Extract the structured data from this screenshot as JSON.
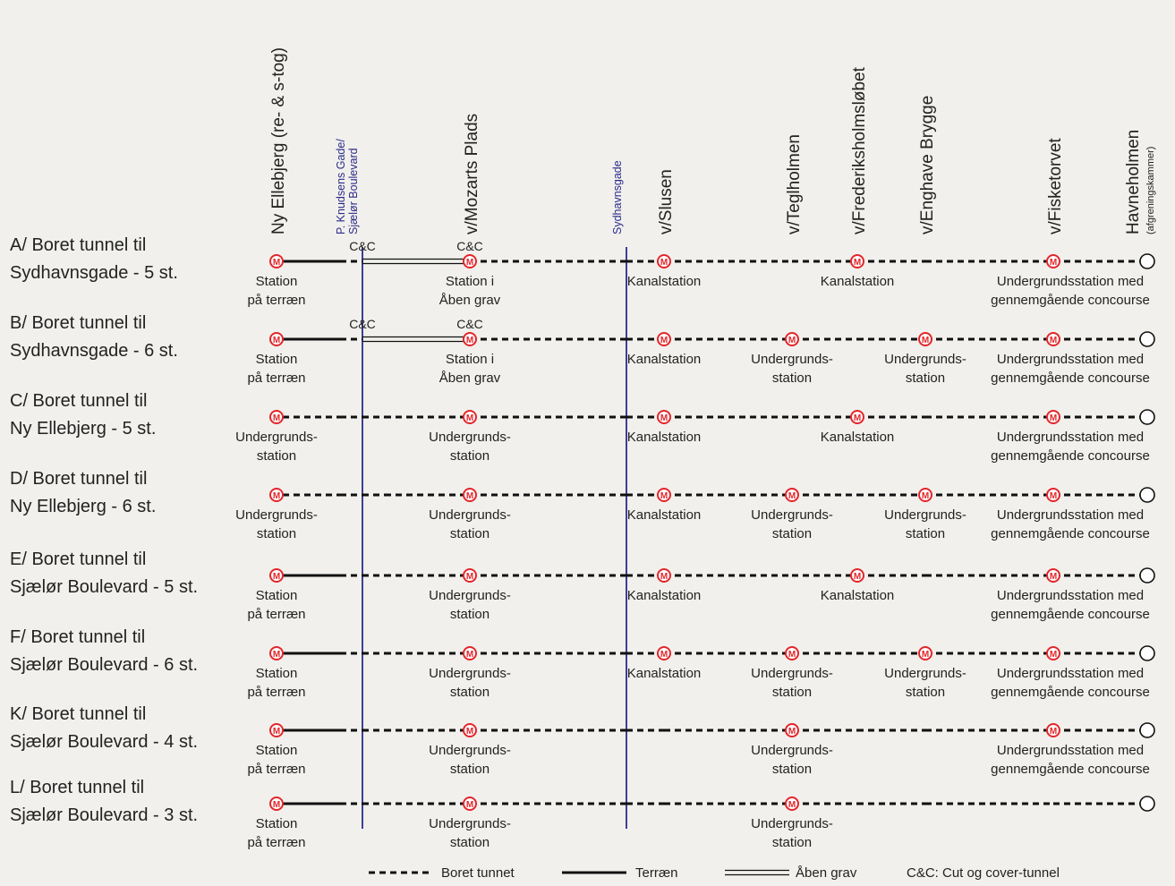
{
  "colors": {
    "background": "#f1f0ec",
    "line": "#111111",
    "divider": "#2b2b8c",
    "metro_ring": "#e3262b",
    "text": "#222222"
  },
  "columns": [
    {
      "id": "ny-ellebjerg",
      "label": "Ny Ellebjerg (re- & s-tog)"
    },
    {
      "id": "mozarts",
      "label": "v/Mozarts Plads"
    },
    {
      "id": "slusen",
      "label": "v/Slusen"
    },
    {
      "id": "teglholmen",
      "label": "v/Teglholmen"
    },
    {
      "id": "frederiksholm",
      "label": "v/Frederiksholmsløbet"
    },
    {
      "id": "enghave",
      "label": "v/Enghave Brygge"
    },
    {
      "id": "fisketorvet",
      "label": "v/Fisketorvet"
    },
    {
      "id": "havneholmen",
      "label": "Havneholmen",
      "sublabel": "(afgreningskammer)"
    }
  ],
  "dividers": [
    {
      "id": "pknudsen",
      "label_lines": [
        "P. Knudsens Gade/",
        "Sjælør Boulevard"
      ]
    },
    {
      "id": "sydhavnsgade",
      "label_lines": [
        "Sydhavnsgade"
      ]
    }
  ],
  "metro_symbol": "M",
  "rows": [
    {
      "title_lines": [
        "A/ Boret tunnel til",
        "Sydhavnsgade - 5 st."
      ],
      "segments": [
        "terrain",
        "cc",
        "open",
        "open",
        "bored",
        "bored",
        "bored",
        "bored",
        "bored",
        "bored",
        "bored"
      ],
      "cc_labels": [
        {
          "text": "C&C",
          "at": "pknudsen"
        },
        {
          "text": "C&C",
          "at": "mozarts"
        }
      ],
      "stations": [
        {
          "at": "ny-ellebjerg",
          "lines": [
            "Station",
            "på terræn"
          ]
        },
        {
          "at": "mozarts",
          "lines": [
            "Station i",
            "Åben grav"
          ]
        },
        {
          "at": "slusen",
          "lines": [
            "Kanalstation"
          ]
        },
        {
          "at": "frederiksholm",
          "lines": [
            "Kanalstation"
          ]
        },
        {
          "at": "fisketorvet",
          "lines": [
            "Undergrundsstation med",
            "gennemgående concourse"
          ]
        }
      ]
    },
    {
      "title_lines": [
        "B/ Boret tunnel til",
        "Sydhavnsgade - 6 st."
      ],
      "segments": [
        "terrain",
        "cc",
        "open",
        "open",
        "bored",
        "bored",
        "bored",
        "bored",
        "bored",
        "bored",
        "bored"
      ],
      "cc_labels": [
        {
          "text": "C&C",
          "at": "pknudsen"
        },
        {
          "text": "C&C",
          "at": "mozarts"
        }
      ],
      "stations": [
        {
          "at": "ny-ellebjerg",
          "lines": [
            "Station",
            "på terræn"
          ]
        },
        {
          "at": "mozarts",
          "lines": [
            "Station i",
            "Åben grav"
          ]
        },
        {
          "at": "slusen",
          "lines": [
            "Kanalstation"
          ]
        },
        {
          "at": "teglholmen",
          "lines": [
            "Undergrunds-",
            "station"
          ]
        },
        {
          "at": "enghave",
          "lines": [
            "Undergrunds-",
            "station"
          ]
        },
        {
          "at": "fisketorvet",
          "lines": [
            "Undergrundsstation med",
            "gennemgående concourse"
          ]
        }
      ]
    },
    {
      "title_lines": [
        "C/ Boret tunnel til",
        "Ny Ellebjerg - 5 st."
      ],
      "segments": [
        "bored",
        "bored",
        "bored",
        "bored",
        "bored",
        "bored",
        "bored",
        "bored",
        "bored",
        "bored",
        "bored"
      ],
      "cc_labels": [],
      "stations": [
        {
          "at": "ny-ellebjerg",
          "lines": [
            "Undergrunds-",
            "station"
          ]
        },
        {
          "at": "mozarts",
          "lines": [
            "Undergrunds-",
            "station"
          ]
        },
        {
          "at": "slusen",
          "lines": [
            "Kanalstation"
          ]
        },
        {
          "at": "frederiksholm",
          "lines": [
            "Kanalstation"
          ]
        },
        {
          "at": "fisketorvet",
          "lines": [
            "Undergrundsstation med",
            "gennemgående concourse"
          ]
        }
      ]
    },
    {
      "title_lines": [
        "D/ Boret tunnel til",
        "Ny Ellebjerg - 6 st."
      ],
      "segments": [
        "bored",
        "bored",
        "bored",
        "bored",
        "bored",
        "bored",
        "bored",
        "bored",
        "bored",
        "bored",
        "bored"
      ],
      "cc_labels": [],
      "stations": [
        {
          "at": "ny-ellebjerg",
          "lines": [
            "Undergrunds-",
            "station"
          ]
        },
        {
          "at": "mozarts",
          "lines": [
            "Undergrunds-",
            "station"
          ]
        },
        {
          "at": "slusen",
          "lines": [
            "Kanalstation"
          ]
        },
        {
          "at": "teglholmen",
          "lines": [
            "Undergrunds-",
            "station"
          ]
        },
        {
          "at": "enghave",
          "lines": [
            "Undergrunds-",
            "station"
          ]
        },
        {
          "at": "fisketorvet",
          "lines": [
            "Undergrundsstation med",
            "gennemgående concourse"
          ]
        }
      ]
    },
    {
      "title_lines": [
        "E/ Boret tunnel til",
        "Sjælør Boulevard - 5 st."
      ],
      "segments": [
        "terrain",
        "bored",
        "bored",
        "bored",
        "bored",
        "bored",
        "bored",
        "bored",
        "bored",
        "bored",
        "bored"
      ],
      "cc_labels": [],
      "stations": [
        {
          "at": "ny-ellebjerg",
          "lines": [
            "Station",
            "på terræn"
          ]
        },
        {
          "at": "mozarts",
          "lines": [
            "Undergrunds-",
            "station"
          ]
        },
        {
          "at": "slusen",
          "lines": [
            "Kanalstation"
          ]
        },
        {
          "at": "frederiksholm",
          "lines": [
            "Kanalstation"
          ]
        },
        {
          "at": "fisketorvet",
          "lines": [
            "Undergrundsstation med",
            "gennemgående concourse"
          ]
        }
      ]
    },
    {
      "title_lines": [
        "F/ Boret tunnel til",
        "Sjælør Boulevard - 6 st."
      ],
      "segments": [
        "terrain",
        "bored",
        "bored",
        "bored",
        "bored",
        "bored",
        "bored",
        "bored",
        "bored",
        "bored",
        "bored"
      ],
      "cc_labels": [],
      "stations": [
        {
          "at": "ny-ellebjerg",
          "lines": [
            "Station",
            "på terræn"
          ]
        },
        {
          "at": "mozarts",
          "lines": [
            "Undergrunds-",
            "station"
          ]
        },
        {
          "at": "slusen",
          "lines": [
            "Kanalstation"
          ]
        },
        {
          "at": "teglholmen",
          "lines": [
            "Undergrunds-",
            "station"
          ]
        },
        {
          "at": "enghave",
          "lines": [
            "Undergrunds-",
            "station"
          ]
        },
        {
          "at": "fisketorvet",
          "lines": [
            "Undergrundsstation med",
            "gennemgående concourse"
          ]
        }
      ]
    },
    {
      "title_lines": [
        "K/ Boret tunnel til",
        "Sjælør Boulevard - 4 st."
      ],
      "segments": [
        "terrain",
        "bored",
        "bored",
        "bored",
        "bored",
        "bored",
        "bored",
        "bored",
        "bored",
        "bored",
        "bored"
      ],
      "cc_labels": [],
      "stations": [
        {
          "at": "ny-ellebjerg",
          "lines": [
            "Station",
            "på terræn"
          ]
        },
        {
          "at": "mozarts",
          "lines": [
            "Undergrunds-",
            "station"
          ]
        },
        {
          "at": "teglholmen",
          "lines": [
            "Undergrunds-",
            "station"
          ]
        },
        {
          "at": "fisketorvet",
          "lines": [
            "Undergrundsstation med",
            "gennemgående concourse"
          ]
        }
      ]
    },
    {
      "title_lines": [
        "L/ Boret tunnel til",
        "Sjælør Boulevard - 3 st."
      ],
      "segments": [
        "terrain",
        "bored",
        "bored",
        "bored",
        "bored",
        "bored",
        "bored",
        "bored",
        "bored",
        "bored",
        "bored"
      ],
      "cc_labels": [],
      "stations": [
        {
          "at": "ny-ellebjerg",
          "lines": [
            "Station",
            "på terræn"
          ]
        },
        {
          "at": "mozarts",
          "lines": [
            "Undergrunds-",
            "station"
          ]
        },
        {
          "at": "teglholmen",
          "lines": [
            "Undergrunds-",
            "station"
          ]
        }
      ]
    }
  ],
  "legend": {
    "bored": "Boret tunnet",
    "terrain": "Terræn",
    "open": "Åben grav",
    "cc": "C&C: Cut og cover-tunnel"
  }
}
